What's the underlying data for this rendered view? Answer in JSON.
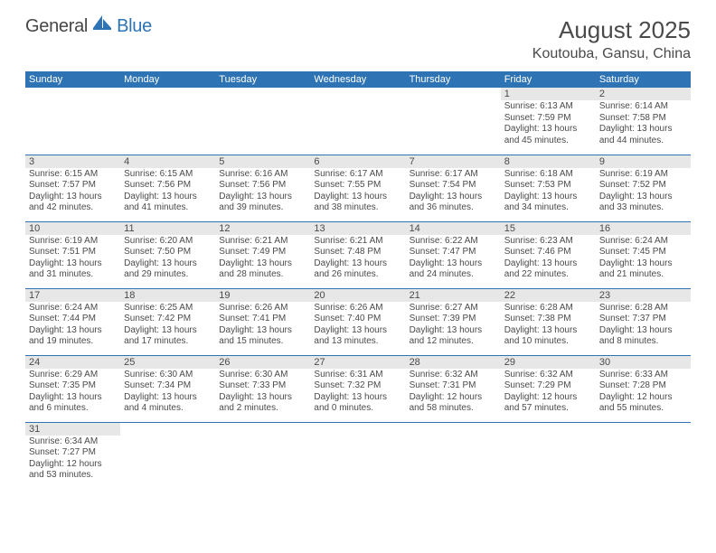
{
  "logo": {
    "general": "General",
    "blue": "Blue"
  },
  "title": "August 2025",
  "location": "Koutouba, Gansu, China",
  "colors": {
    "header_bg": "#2e74b5",
    "daynum_bg": "#e7e7e7",
    "text": "#4a4a4a",
    "row_border": "#2e74b5"
  },
  "dow": [
    "Sunday",
    "Monday",
    "Tuesday",
    "Wednesday",
    "Thursday",
    "Friday",
    "Saturday"
  ],
  "weeks": [
    [
      null,
      null,
      null,
      null,
      null,
      {
        "n": "1",
        "sr": "6:13 AM",
        "ss": "7:59 PM",
        "dl": "13 hours and 45 minutes."
      },
      {
        "n": "2",
        "sr": "6:14 AM",
        "ss": "7:58 PM",
        "dl": "13 hours and 44 minutes."
      }
    ],
    [
      {
        "n": "3",
        "sr": "6:15 AM",
        "ss": "7:57 PM",
        "dl": "13 hours and 42 minutes."
      },
      {
        "n": "4",
        "sr": "6:15 AM",
        "ss": "7:56 PM",
        "dl": "13 hours and 41 minutes."
      },
      {
        "n": "5",
        "sr": "6:16 AM",
        "ss": "7:56 PM",
        "dl": "13 hours and 39 minutes."
      },
      {
        "n": "6",
        "sr": "6:17 AM",
        "ss": "7:55 PM",
        "dl": "13 hours and 38 minutes."
      },
      {
        "n": "7",
        "sr": "6:17 AM",
        "ss": "7:54 PM",
        "dl": "13 hours and 36 minutes."
      },
      {
        "n": "8",
        "sr": "6:18 AM",
        "ss": "7:53 PM",
        "dl": "13 hours and 34 minutes."
      },
      {
        "n": "9",
        "sr": "6:19 AM",
        "ss": "7:52 PM",
        "dl": "13 hours and 33 minutes."
      }
    ],
    [
      {
        "n": "10",
        "sr": "6:19 AM",
        "ss": "7:51 PM",
        "dl": "13 hours and 31 minutes."
      },
      {
        "n": "11",
        "sr": "6:20 AM",
        "ss": "7:50 PM",
        "dl": "13 hours and 29 minutes."
      },
      {
        "n": "12",
        "sr": "6:21 AM",
        "ss": "7:49 PM",
        "dl": "13 hours and 28 minutes."
      },
      {
        "n": "13",
        "sr": "6:21 AM",
        "ss": "7:48 PM",
        "dl": "13 hours and 26 minutes."
      },
      {
        "n": "14",
        "sr": "6:22 AM",
        "ss": "7:47 PM",
        "dl": "13 hours and 24 minutes."
      },
      {
        "n": "15",
        "sr": "6:23 AM",
        "ss": "7:46 PM",
        "dl": "13 hours and 22 minutes."
      },
      {
        "n": "16",
        "sr": "6:24 AM",
        "ss": "7:45 PM",
        "dl": "13 hours and 21 minutes."
      }
    ],
    [
      {
        "n": "17",
        "sr": "6:24 AM",
        "ss": "7:44 PM",
        "dl": "13 hours and 19 minutes."
      },
      {
        "n": "18",
        "sr": "6:25 AM",
        "ss": "7:42 PM",
        "dl": "13 hours and 17 minutes."
      },
      {
        "n": "19",
        "sr": "6:26 AM",
        "ss": "7:41 PM",
        "dl": "13 hours and 15 minutes."
      },
      {
        "n": "20",
        "sr": "6:26 AM",
        "ss": "7:40 PM",
        "dl": "13 hours and 13 minutes."
      },
      {
        "n": "21",
        "sr": "6:27 AM",
        "ss": "7:39 PM",
        "dl": "13 hours and 12 minutes."
      },
      {
        "n": "22",
        "sr": "6:28 AM",
        "ss": "7:38 PM",
        "dl": "13 hours and 10 minutes."
      },
      {
        "n": "23",
        "sr": "6:28 AM",
        "ss": "7:37 PM",
        "dl": "13 hours and 8 minutes."
      }
    ],
    [
      {
        "n": "24",
        "sr": "6:29 AM",
        "ss": "7:35 PM",
        "dl": "13 hours and 6 minutes."
      },
      {
        "n": "25",
        "sr": "6:30 AM",
        "ss": "7:34 PM",
        "dl": "13 hours and 4 minutes."
      },
      {
        "n": "26",
        "sr": "6:30 AM",
        "ss": "7:33 PM",
        "dl": "13 hours and 2 minutes."
      },
      {
        "n": "27",
        "sr": "6:31 AM",
        "ss": "7:32 PM",
        "dl": "13 hours and 0 minutes."
      },
      {
        "n": "28",
        "sr": "6:32 AM",
        "ss": "7:31 PM",
        "dl": "12 hours and 58 minutes."
      },
      {
        "n": "29",
        "sr": "6:32 AM",
        "ss": "7:29 PM",
        "dl": "12 hours and 57 minutes."
      },
      {
        "n": "30",
        "sr": "6:33 AM",
        "ss": "7:28 PM",
        "dl": "12 hours and 55 minutes."
      }
    ],
    [
      {
        "n": "31",
        "sr": "6:34 AM",
        "ss": "7:27 PM",
        "dl": "12 hours and 53 minutes."
      },
      null,
      null,
      null,
      null,
      null,
      null
    ]
  ],
  "labels": {
    "sunrise": "Sunrise: ",
    "sunset": "Sunset: ",
    "daylight": "Daylight: "
  }
}
